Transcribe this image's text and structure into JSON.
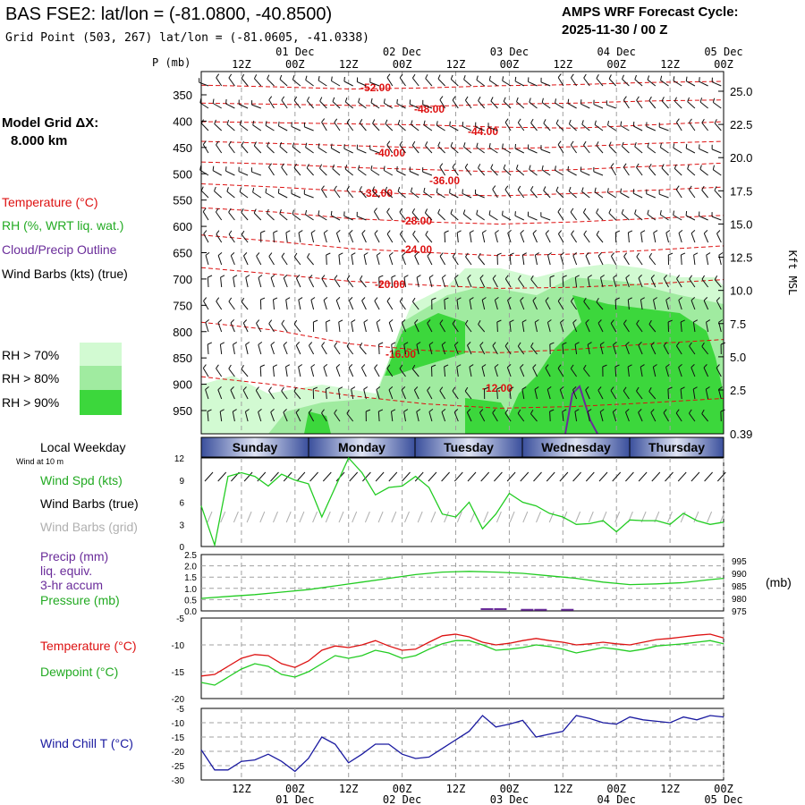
{
  "header": {
    "title": "BAS FSE2:  lat/lon = (-81.0800, -40.8500)",
    "subtitle": "Grid Point (503, 267) lat/lon = (-81.0605, -41.0338)",
    "cycle_label": "AMPS WRF Forecast Cycle:",
    "cycle_value": "2025-11-30 / 00  Z"
  },
  "model_grid": {
    "label": "Model Grid ΔX:",
    "value": "8.000 km"
  },
  "legend": {
    "temperature": "Temperature (°C)",
    "rh": "RH (%, WRT liq. wat.)",
    "cloud": "Cloud/Precip Outline",
    "wind": "Wind Barbs (kts) (true)",
    "rh70": "RH > 70%",
    "rh80": "RH > 80%",
    "rh90": "RH > 90%",
    "rh70_color": "#d2fad2",
    "rh80_color": "#a0eba0",
    "rh90_color": "#3cd73c",
    "temp_color": "#dd1111",
    "cloud_color": "#6a2c9a"
  },
  "time_axis": {
    "top_ticks": [
      "12Z",
      "00Z",
      "12Z",
      "00Z",
      "12Z",
      "00Z",
      "12Z",
      "00Z",
      "12Z",
      "00Z"
    ],
    "date_labels": [
      "01 Dec",
      "02 Dec",
      "03 Dec",
      "04 Dec",
      "05 Dec"
    ],
    "weekdays": [
      "Sunday",
      "Monday",
      "Tuesday",
      "Wednesday",
      "Thursday"
    ],
    "weekday_header": "Local Weekday",
    "wind_note": "Wind at 10 m"
  },
  "chart_data": [
    {
      "type": "area",
      "name": "cross-section",
      "ylabel": "P (mb)",
      "yticks": [
        "350",
        "400",
        "450",
        "500",
        "550",
        "600",
        "650",
        "700",
        "750",
        "800",
        "850",
        "900",
        "950"
      ],
      "right_ticks": [
        "25.0",
        "22.5",
        "20.0",
        "17.5",
        "15.0",
        "12.5",
        "10.0",
        "7.5",
        "5.0",
        "2.5",
        "0.39"
      ],
      "right_label": "Kft MSL",
      "isotherm_labels": [
        "-52.00",
        "-48.00",
        "-44.00",
        "-40.00",
        "-36.00",
        "-32.00",
        "-28.00",
        "-24.00",
        "-20.00",
        "-16.00",
        "-12.00"
      ],
      "isotherms": [
        {
          "value": -52,
          "p": [
            345,
            348,
            352,
            350,
            346,
            344,
            340,
            338
          ]
        },
        {
          "value": -48,
          "p": [
            378,
            380,
            382,
            384,
            380,
            378,
            374,
            372
          ]
        },
        {
          "value": -44,
          "p": [
            412,
            414,
            416,
            418,
            422,
            424,
            418,
            412
          ]
        },
        {
          "value": -40,
          "p": [
            448,
            452,
            456,
            460,
            462,
            458,
            452,
            448
          ]
        },
        {
          "value": -36,
          "p": [
            486,
            490,
            496,
            500,
            504,
            500,
            494,
            488
          ]
        },
        {
          "value": -32,
          "p": [
            526,
            532,
            540,
            546,
            548,
            544,
            538,
            532
          ]
        },
        {
          "value": -28,
          "p": [
            570,
            578,
            590,
            596,
            600,
            596,
            590,
            584
          ]
        },
        {
          "value": -24,
          "p": [
            620,
            632,
            645,
            652,
            658,
            655,
            648,
            640
          ]
        },
        {
          "value": -20,
          "p": [
            680,
            692,
            705,
            712,
            718,
            716,
            710,
            702
          ]
        },
        {
          "value": -16,
          "p": [
            780,
            795,
            820,
            832,
            836,
            830,
            820,
            812
          ]
        },
        {
          "value": -12,
          "p": [
            880,
            895,
            915,
            930,
            938,
            935,
            928,
            920
          ]
        }
      ]
    },
    {
      "type": "line",
      "name": "wind-speed",
      "ylabel": "Wind Spd (kts)",
      "barbs_true_label": "Wind Barbs (true)",
      "barbs_grid_label": "Wind Barbs (grid)",
      "ylim": [
        0,
        12
      ],
      "yticks": [
        "0",
        "3",
        "6",
        "9",
        "12"
      ],
      "x_hours": [
        0,
        3,
        6,
        9,
        12,
        15,
        18,
        21,
        24,
        27,
        30,
        33,
        36,
        39,
        42,
        45,
        48,
        51,
        54,
        57,
        60,
        63,
        66,
        69,
        72,
        75,
        78,
        81,
        84,
        87,
        90,
        93,
        96,
        99,
        102,
        105,
        108,
        111,
        114,
        117
      ],
      "values": [
        5.5,
        0.2,
        9.5,
        10,
        9.5,
        8.2,
        9.8,
        9,
        8.5,
        4,
        8,
        12,
        10,
        7,
        8,
        8.2,
        9.5,
        8,
        4.4,
        4,
        6,
        2.4,
        4.4,
        7.2,
        6,
        5.5,
        4.5,
        4,
        3,
        3.1,
        3.5,
        2,
        3.6,
        3.5,
        3.5,
        3,
        4.5,
        3.5,
        3,
        3.3
      ]
    },
    {
      "type": "line",
      "name": "precip-pressure",
      "precip_label": "Precip (mm)",
      "precip_label2": "liq. equiv.",
      "precip_label3": "3-hr accum",
      "pressure_label": "Pressure (mb)",
      "left_ticks": [
        "0.0",
        "0.5",
        "1.0",
        "1.5",
        "2.0",
        "2.5"
      ],
      "right_ticks": [
        "975",
        "980",
        "985",
        "990",
        "995"
      ],
      "right_unit": "(mb)",
      "ylim_precip": [
        0,
        2.5
      ],
      "ylim_pressure": [
        975,
        997.5
      ],
      "x_hours": [
        0,
        6,
        12,
        18,
        24,
        30,
        36,
        42,
        48,
        54,
        60,
        66,
        72,
        78,
        84,
        90,
        96,
        102,
        108,
        114,
        117
      ],
      "pressure": [
        980,
        980.8,
        981.5,
        982.5,
        983.5,
        985,
        986.5,
        988,
        989.5,
        990.5,
        990.8,
        990.5,
        990,
        989,
        988,
        986.5,
        985.5,
        985.8,
        986.3,
        987.5,
        988
      ],
      "precip_x": [
        63,
        66,
        69,
        72,
        75,
        78,
        81,
        84
      ],
      "precip": [
        0.08,
        0.08,
        0,
        0.05,
        0.05,
        0,
        0.05,
        0
      ]
    },
    {
      "type": "line",
      "name": "temperature-dewpoint",
      "temp_label": "Temperature (°C)",
      "dew_label": "Dewpoint (°C)",
      "ylim": [
        -20,
        -5
      ],
      "yticks": [
        "-20",
        "-15",
        "-10",
        "-5"
      ],
      "x_hours": [
        0,
        3,
        6,
        9,
        12,
        15,
        18,
        21,
        24,
        27,
        30,
        33,
        36,
        39,
        42,
        45,
        48,
        51,
        54,
        57,
        60,
        63,
        66,
        69,
        72,
        75,
        78,
        81,
        84,
        87,
        90,
        93,
        96,
        99,
        102,
        105,
        108,
        111,
        114,
        117
      ],
      "temperature": [
        -15.8,
        -15.5,
        -14,
        -12.5,
        -11.8,
        -12,
        -13.5,
        -14.2,
        -13,
        -11,
        -10.2,
        -10.5,
        -10,
        -9.2,
        -10.2,
        -11,
        -10.8,
        -9.5,
        -8.3,
        -8,
        -8.5,
        -9.5,
        -10,
        -9.7,
        -9.2,
        -8.8,
        -9.2,
        -9.5,
        -10,
        -9.8,
        -9.5,
        -9.8,
        -10,
        -9.5,
        -9,
        -8.8,
        -8.5,
        -8.2,
        -8,
        -8.7
      ],
      "dewpoint": [
        -17,
        -17.5,
        -16,
        -14.5,
        -13.5,
        -14,
        -15.5,
        -16,
        -15,
        -13.5,
        -12,
        -12.5,
        -12,
        -11,
        -11.5,
        -12.5,
        -12,
        -10.8,
        -9.8,
        -9.2,
        -9.2,
        -10,
        -11,
        -10.8,
        -10.5,
        -10,
        -10.3,
        -10.8,
        -11.5,
        -11,
        -10.5,
        -10.8,
        -11.2,
        -10.8,
        -10.2,
        -10,
        -9.8,
        -9.5,
        -9.2,
        -9.8
      ]
    },
    {
      "type": "line",
      "name": "wind-chill",
      "label": "Wind Chill T (°C)",
      "ylim": [
        -30,
        -5
      ],
      "yticks": [
        "-30",
        "-25",
        "-20",
        "-15",
        "-10",
        "-5"
      ],
      "x_hours": [
        0,
        3,
        6,
        9,
        12,
        15,
        18,
        21,
        24,
        27,
        30,
        33,
        36,
        39,
        42,
        45,
        48,
        51,
        54,
        57,
        60,
        63,
        66,
        69,
        72,
        75,
        78,
        81,
        84,
        87,
        90,
        93,
        96,
        99,
        102,
        105,
        108,
        111,
        114,
        117
      ],
      "values": [
        -19.5,
        -26.5,
        -26.5,
        -23.5,
        -23,
        -21,
        -23.5,
        -27,
        -22.5,
        -15,
        -17.5,
        -24,
        -21,
        -17.5,
        -17.5,
        -21,
        -22.5,
        -22,
        -19,
        -16,
        -13,
        -7.5,
        -11.5,
        -10.5,
        -9.2,
        -15,
        -14,
        -13,
        -7.5,
        -8.5,
        -10,
        -10.5,
        -8,
        -9,
        -9.5,
        -10,
        -8,
        -9,
        -7.5,
        -8
      ]
    }
  ]
}
